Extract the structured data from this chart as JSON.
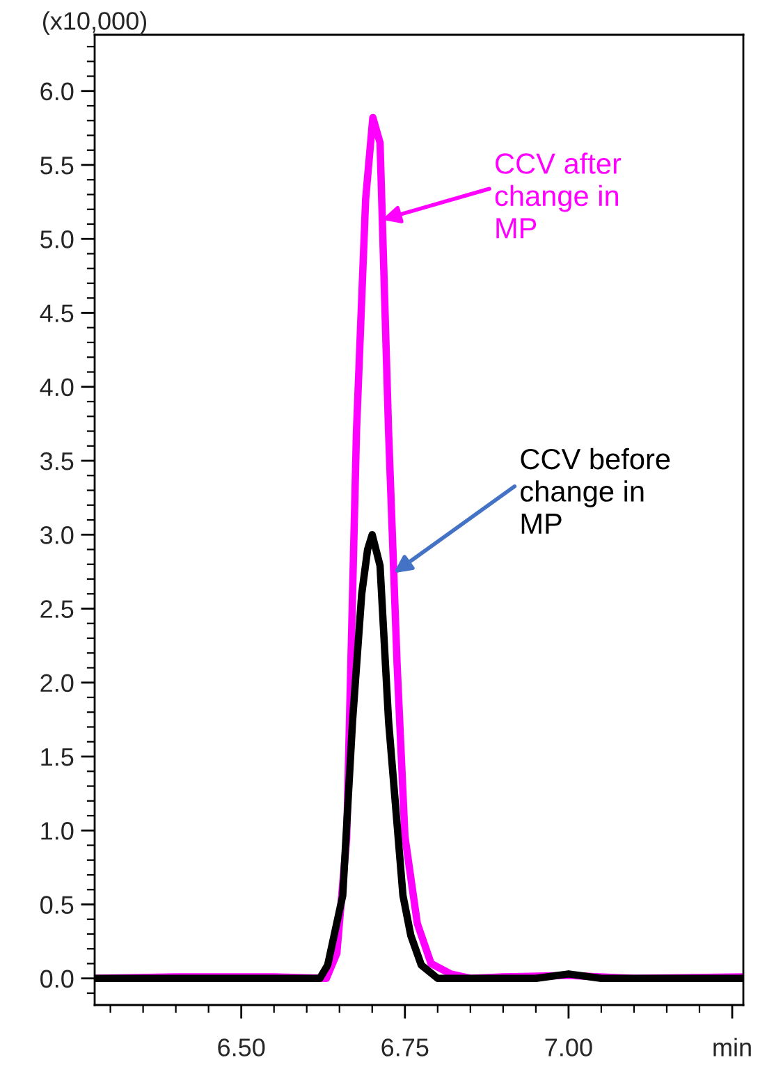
{
  "chart_data": {
    "type": "line",
    "ylabel": "(x10,000)",
    "xlim": [
      6.276,
      7.267
    ],
    "ylim": [
      -0.18,
      6.38
    ],
    "xticks": [
      {
        "value": 6.5,
        "label": "6.50"
      },
      {
        "value": 6.75,
        "label": "6.75"
      },
      {
        "value": 7.0,
        "label": "7.00"
      },
      {
        "value": 7.25,
        "label": "min"
      }
    ],
    "yticks": [
      {
        "value": 0,
        "label": "0.0"
      },
      {
        "value": 0.5,
        "label": "0.5"
      },
      {
        "value": 1,
        "label": "1.0"
      },
      {
        "value": 1.5,
        "label": "1.5"
      },
      {
        "value": 2,
        "label": "2.0"
      },
      {
        "value": 2.5,
        "label": "2.5"
      },
      {
        "value": 3,
        "label": "3.0"
      },
      {
        "value": 3.5,
        "label": "3.5"
      },
      {
        "value": 4,
        "label": "4.0"
      },
      {
        "value": 4.5,
        "label": "4.5"
      },
      {
        "value": 5,
        "label": "5.0"
      },
      {
        "value": 5.5,
        "label": "5.5"
      },
      {
        "value": 6,
        "label": "6.0"
      }
    ],
    "grid": false,
    "marker": "none",
    "line_style": "solid",
    "series": [
      {
        "color": "#ff00ff",
        "x": [
          6.276,
          6.4,
          6.55,
          6.63,
          6.646,
          6.661,
          6.676,
          6.69,
          6.701,
          6.712,
          6.725,
          6.738,
          6.75,
          6.769,
          6.79,
          6.82,
          6.85,
          6.9,
          7.0,
          7.1,
          7.267
        ],
        "values": [
          0.0,
          0.01,
          0.01,
          0.0,
          0.17,
          0.95,
          3.7,
          5.27,
          5.82,
          5.65,
          3.7,
          2.13,
          0.96,
          0.37,
          0.1,
          0.03,
          0.0,
          0.01,
          0.02,
          0.0,
          0.01
        ]
      },
      {
        "color": "#000000",
        "x": [
          6.276,
          6.4,
          6.55,
          6.62,
          6.632,
          6.655,
          6.67,
          6.684,
          6.693,
          6.7,
          6.712,
          6.725,
          6.747,
          6.759,
          6.775,
          6.8,
          6.9,
          6.95,
          7.0,
          7.05,
          7.15,
          7.267
        ],
        "values": [
          0.0,
          0.0,
          0.0,
          0.0,
          0.09,
          0.56,
          1.74,
          2.6,
          2.9,
          3.0,
          2.79,
          1.74,
          0.56,
          0.29,
          0.09,
          0.0,
          0.0,
          0.0,
          0.03,
          0.0,
          0.0,
          0.0
        ]
      }
    ],
    "annotations": [
      {
        "text": "CCV after\nchange in\nMP",
        "x": 6.715,
        "y": 5.13
      },
      {
        "text": "CCV before\nchange in\nMP",
        "x": 6.733,
        "y": 2.74
      }
    ]
  }
}
